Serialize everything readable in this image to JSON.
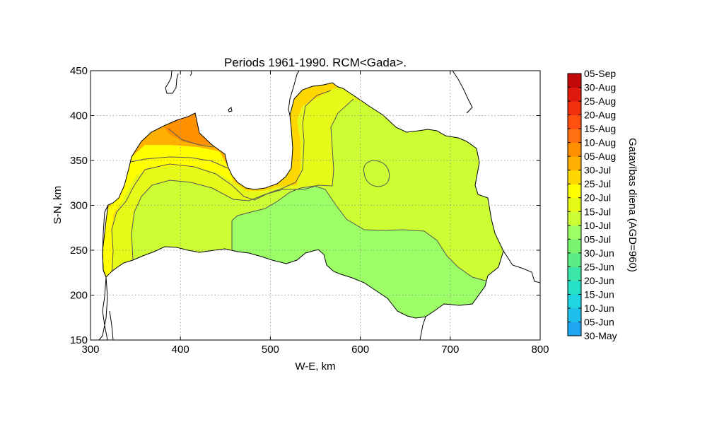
{
  "chart_data": {
    "type": "contour-map",
    "title": "Periods 1961-1990. RCM<Gada>.",
    "xlabel": "W-E, km",
    "ylabel": "S-N, km",
    "xlim": [
      300,
      800
    ],
    "ylim": [
      150,
      450
    ],
    "xticks": [
      300,
      400,
      500,
      600,
      700,
      800
    ],
    "yticks": [
      150,
      200,
      250,
      300,
      350,
      400,
      450
    ],
    "grid": true,
    "colorbar": {
      "label": "Gatavības diena (AGD=960)",
      "levels": [
        "30-May",
        "05-Jun",
        "10-Jun",
        "15-Jun",
        "20-Jun",
        "25-Jun",
        "30-Jun",
        "05-Jul",
        "10-Jul",
        "15-Jul",
        "20-Jul",
        "25-Jul",
        "30-Jul",
        "05-Aug",
        "10-Aug",
        "15-Aug",
        "20-Aug",
        "25-Aug",
        "30-Aug",
        "05-Sep"
      ],
      "colors": [
        "#1a8cf0",
        "#1ea6f0",
        "#1fbfec",
        "#20d4e2",
        "#27e0c8",
        "#3ce6a8",
        "#5cec85",
        "#7af470",
        "#9cff66",
        "#ccff33",
        "#e6fa1a",
        "#ffff00",
        "#ffd700",
        "#ffb000",
        "#ff9000",
        "#ff7010",
        "#ff5010",
        "#f23010",
        "#dd1a0c",
        "#c20808"
      ]
    },
    "regions": [
      {
        "level": "30-Jul",
        "color": "#ffd700"
      },
      {
        "level": "05-Aug",
        "color": "#ffb000"
      },
      {
        "level": "10-Aug",
        "color": "#ff9000"
      },
      {
        "level": "25-Jul",
        "color": "#ffff00"
      },
      {
        "level": "20-Jul",
        "color": "#e6fa1a"
      },
      {
        "level": "15-Jul",
        "color": "#ccff33"
      },
      {
        "level": "10-Jul",
        "color": "#9cff66"
      }
    ]
  }
}
